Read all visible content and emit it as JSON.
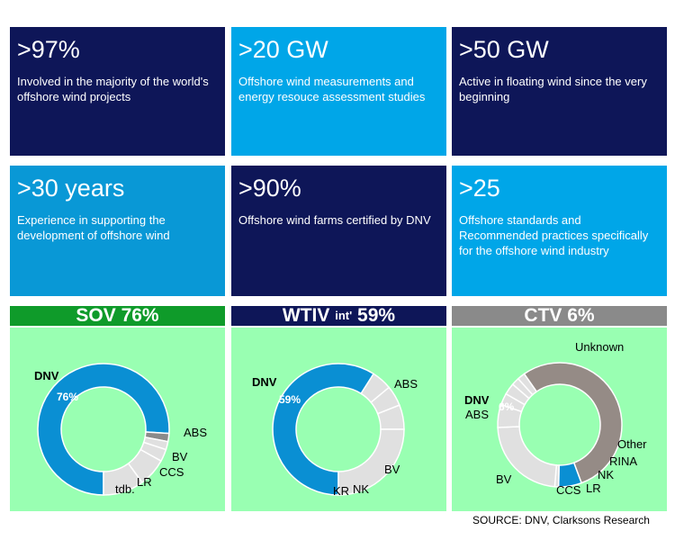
{
  "colors": {
    "navy": "#0e1658",
    "sky": "#00a6e8",
    "mid_blue": "#0998d6",
    "panel_green": "#99ffb2",
    "head_green": "#0f9b2a",
    "head_navy": "#0e1658",
    "head_grey": "#8a8a8a",
    "dnv_blue": "#0a8fd3",
    "light_grey": "#e0e0e0",
    "taupe": "#958b86"
  },
  "tiles": [
    {
      "stat": ">97%",
      "desc": "Involved in the majority of the world's offshore wind projects",
      "bg": "#0e1658"
    },
    {
      "stat": ">20 GW",
      "desc": "Offshore wind measurements and energy resouce assessment studies",
      "bg": "#00a6e8"
    },
    {
      "stat": ">50 GW",
      "desc": "Active in floating wind since the very beginning",
      "bg": "#0e1658"
    },
    {
      "stat": ">30 years",
      "desc": "Experience in supporting the development of offshore wind",
      "bg": "#0998d6"
    },
    {
      "stat": ">90%",
      "desc": "Offshore wind farms certified by DNV",
      "bg": "#0e1658"
    },
    {
      "stat": ">25",
      "desc": "Offshore standards and Recommended practices specifically for the offshore wind industry",
      "bg": "#00a6e8"
    }
  ],
  "panels": [
    {
      "title": "SOV 76%",
      "title_main": "",
      "title_sub": "",
      "title_tail": ""
    },
    {
      "title": "",
      "title_main": "WTIV ",
      "title_sub": "int'",
      "title_tail": " 59%"
    },
    {
      "title": "CTV 6%",
      "title_main": "",
      "title_sub": "",
      "title_tail": ""
    }
  ],
  "chart_data": [
    {
      "type": "pie",
      "title": "SOV 76%",
      "slices": [
        {
          "label": "DNV",
          "value": 76,
          "value_label": "76%",
          "color": "#0a8fd3"
        },
        {
          "label": "tdb.",
          "value": 2,
          "value_label": "",
          "color": "#8a8a8a"
        },
        {
          "label": "LR",
          "value": 2,
          "value_label": "",
          "color": "#e0e0e0"
        },
        {
          "label": "CCS",
          "value": 3,
          "value_label": "",
          "color": "#e0e0e0"
        },
        {
          "label": "BV",
          "value": 7,
          "value_label": "",
          "color": "#e0e0e0"
        },
        {
          "label": "ABS",
          "value": 10,
          "value_label": "",
          "color": "#e0e0e0"
        }
      ]
    },
    {
      "type": "pie",
      "title": "WTIV int' 59%",
      "slices": [
        {
          "label": "DNV",
          "value": 59,
          "value_label": "59%",
          "color": "#0a8fd3"
        },
        {
          "label": "KR",
          "value": 5,
          "value_label": "",
          "color": "#e0e0e0"
        },
        {
          "label": "NK",
          "value": 5,
          "value_label": "",
          "color": "#e0e0e0"
        },
        {
          "label": "BV",
          "value": 6,
          "value_label": "",
          "color": "#e0e0e0"
        },
        {
          "label": "ABS",
          "value": 25,
          "value_label": "",
          "color": "#e0e0e0"
        }
      ]
    },
    {
      "type": "pie",
      "title": "CTV 6%",
      "slices": [
        {
          "label": "DNV",
          "value": 6,
          "value_label": "6%",
          "color": "#0a8fd3"
        },
        {
          "label": "ABS",
          "value": 1,
          "value_label": "",
          "color": "#e0e0e0"
        },
        {
          "label": "BV",
          "value": 23,
          "value_label": "",
          "color": "#e0e0e0"
        },
        {
          "label": "CCS",
          "value": 6,
          "value_label": "",
          "color": "#e0e0e0"
        },
        {
          "label": "LR",
          "value": 3,
          "value_label": "",
          "color": "#e0e0e0"
        },
        {
          "label": "NK",
          "value": 3,
          "value_label": "",
          "color": "#e0e0e0"
        },
        {
          "label": "RINA",
          "value": 2,
          "value_label": "",
          "color": "#e0e0e0"
        },
        {
          "label": "Other",
          "value": 2,
          "value_label": "",
          "color": "#e0e0e0"
        },
        {
          "label": "Unknown",
          "value": 54,
          "value_label": "",
          "color": "#958b86"
        }
      ]
    }
  ],
  "source": "SOURCE:  DNV, Clarksons Research"
}
